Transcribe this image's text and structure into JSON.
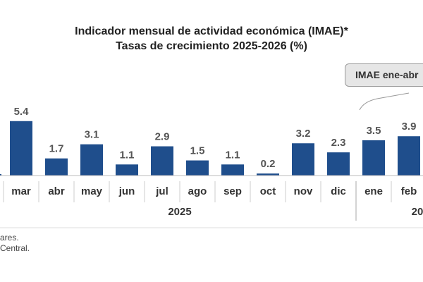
{
  "chart_data": {
    "type": "bar",
    "title": "Indicador mensual de actividad económica (IMAE)*",
    "subtitle": "Tasas de crecimiento 2025-2026 (%)",
    "categories": [
      "mar",
      "abr",
      "may",
      "jun",
      "jul",
      "ago",
      "sep",
      "oct",
      "nov",
      "dic",
      "ene",
      "feb"
    ],
    "values": [
      5.4,
      1.7,
      3.1,
      1.1,
      2.9,
      1.5,
      1.1,
      0.2,
      3.2,
      2.3,
      3.5,
      3.9
    ],
    "value_labels": [
      "5.4",
      "1.7",
      "3.1",
      "1.1",
      "2.9",
      "1.5",
      "1.1",
      "0.2",
      "3.2",
      "2.3",
      "3.5",
      "3.9"
    ],
    "year_groups": [
      {
        "label": "2025",
        "start": 0,
        "end": 9
      },
      {
        "label": "20",
        "start": 10,
        "end": 11
      }
    ],
    "bar_color": "#1f4e8c",
    "ylim": [
      0,
      6
    ],
    "grid": false,
    "legend": "none",
    "callout": "IMAE ene-abr"
  },
  "footnotes": [
    "ares.",
    "Central."
  ]
}
